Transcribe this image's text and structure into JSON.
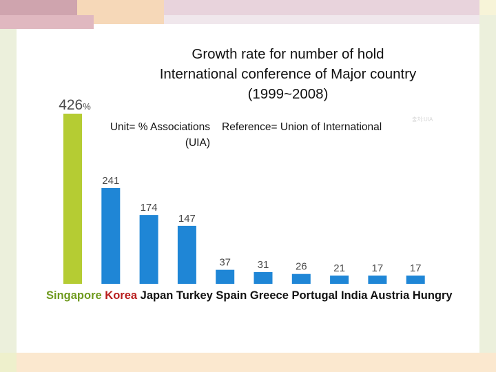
{
  "slide": {
    "title_lines": [
      "Growth rate for number of hold",
      "International conference of Major country",
      "(1999~2008)"
    ],
    "unit": "Unit= % Associations (UIA)",
    "reference": "Reference= Union of International",
    "faint_text": "출처:UIA",
    "country_line": {
      "singapore": "Singapore",
      "korea": "Korea",
      "rest": "Japan Turkey Spain Greece Portugal India Austria Hungry"
    }
  },
  "chart_data": {
    "type": "bar",
    "title": "Growth rate for number of hold International conference of Major country (1999~2008)",
    "xlabel": "",
    "ylabel": "%",
    "categories": [
      "Singapore",
      "Korea",
      "Japan",
      "Turkey",
      "Spain",
      "Greece",
      "Portugal",
      "India",
      "Austria",
      "Hungry"
    ],
    "values": [
      426,
      241,
      174,
      147,
      37,
      31,
      26,
      21,
      17,
      17
    ],
    "value_labels": [
      "426%",
      "241",
      "174",
      "147",
      "37",
      "31",
      "26",
      "21",
      "17",
      "17"
    ],
    "colors": [
      "#b5cc33",
      "#1f86d6",
      "#1f86d6",
      "#1f86d6",
      "#1f86d6",
      "#1f86d6",
      "#1f86d6",
      "#1f86d6",
      "#1f86d6",
      "#1f86d6"
    ],
    "ylim": [
      0,
      426
    ],
    "grid": false
  },
  "colors": {
    "singapore": "#6f9a1e",
    "korea": "#b81c1c",
    "bar_blue": "#1f86d6",
    "bar_green": "#b5cc33"
  }
}
